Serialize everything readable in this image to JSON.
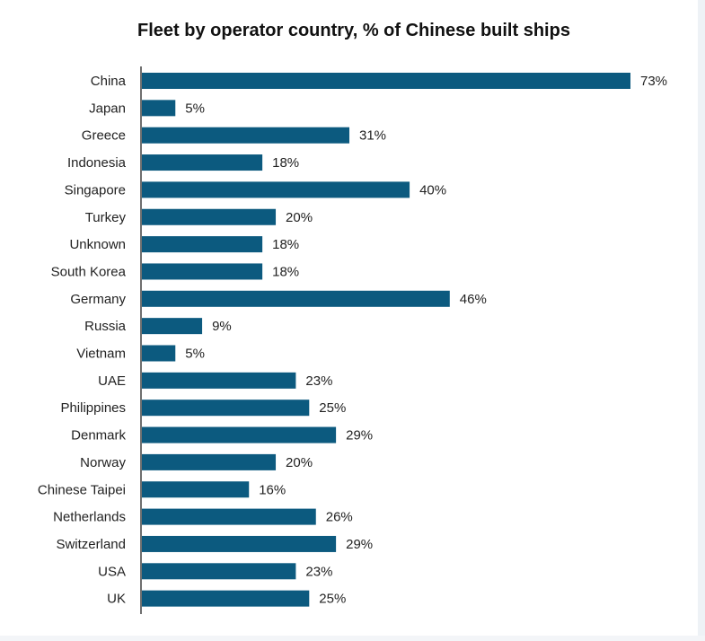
{
  "chart_data": {
    "type": "bar",
    "orientation": "horizontal",
    "title": "Fleet by operator country, % of Chinese built ships",
    "xlabel": "",
    "ylabel": "",
    "xlim": [
      0,
      73
    ],
    "grid": false,
    "legend": "none",
    "bar_color": "#0c5a7f",
    "categories": [
      "China",
      "Japan",
      "Greece",
      "Indonesia",
      "Singapore",
      "Turkey",
      "Unknown",
      "South Korea",
      "Germany",
      "Russia",
      "Vietnam",
      "UAE",
      "Philippines",
      "Denmark",
      "Norway",
      "Chinese Taipei",
      "Netherlands",
      "Switzerland",
      "USA",
      "UK"
    ],
    "values": [
      73,
      5,
      31,
      18,
      40,
      20,
      18,
      18,
      46,
      9,
      5,
      23,
      25,
      29,
      20,
      16,
      26,
      29,
      23,
      25
    ],
    "value_labels": [
      "73%",
      "5%",
      "31%",
      "18%",
      "40%",
      "20%",
      "18%",
      "18%",
      "46%",
      "9%",
      "5%",
      "23%",
      "25%",
      "29%",
      "20%",
      "16%",
      "26%",
      "29%",
      "23%",
      "25%"
    ]
  }
}
